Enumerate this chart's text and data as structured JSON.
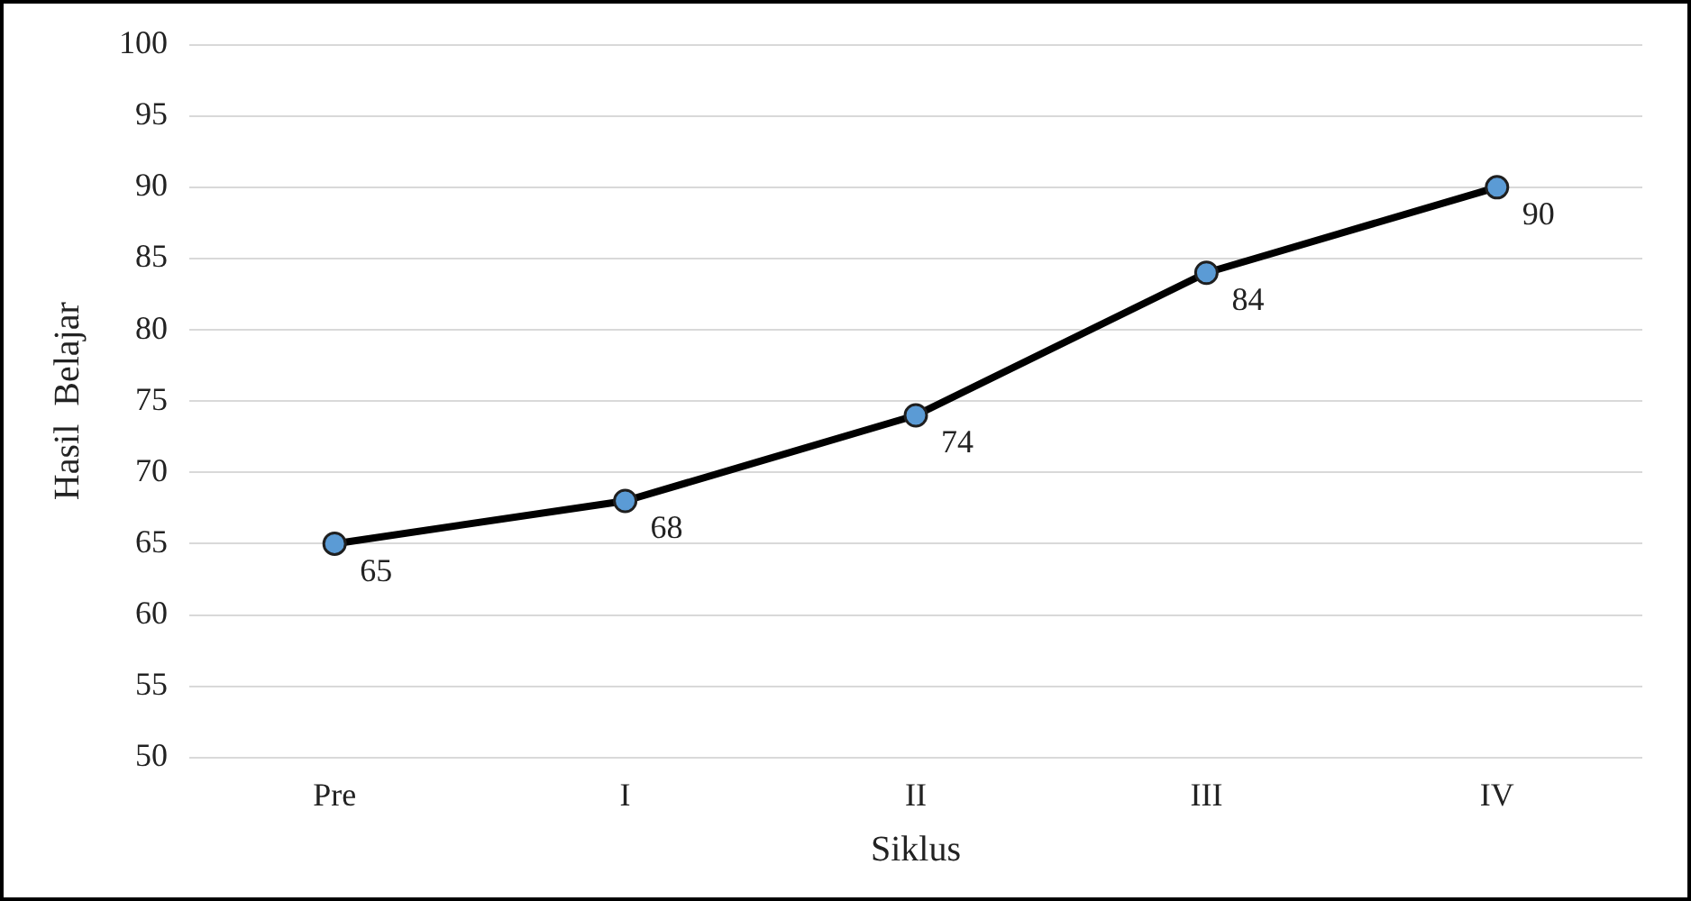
{
  "chart_data": {
    "type": "line",
    "xlabel": "Siklus",
    "ylabel": "Hasil  Belajar",
    "categories": [
      "Pre",
      "I",
      "II",
      "III",
      "IV"
    ],
    "series": [
      {
        "color": "#000000",
        "values": [
          65,
          68,
          74,
          84,
          90
        ]
      }
    ],
    "ylim": [
      50,
      100
    ],
    "yticks": [
      50,
      55,
      60,
      65,
      70,
      75,
      80,
      85,
      90,
      95,
      100
    ],
    "grid": "y",
    "legend": false,
    "marker": "circle",
    "line_style": "solid",
    "data_labels": true
  }
}
